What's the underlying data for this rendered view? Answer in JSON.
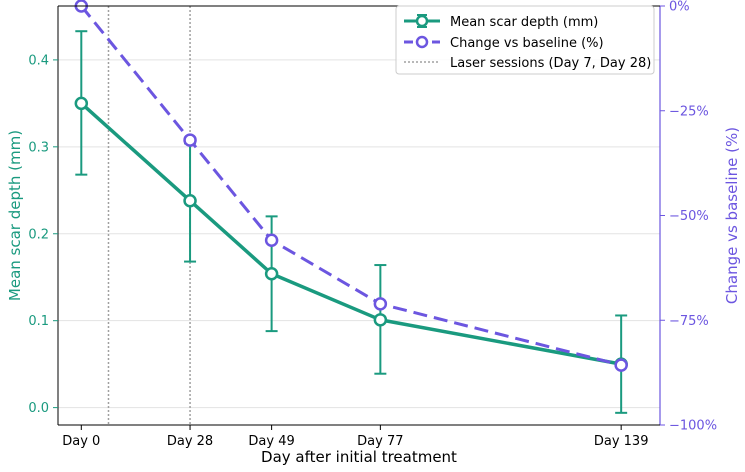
{
  "chart_data": {
    "type": "line",
    "x": [
      0,
      28,
      49,
      77,
      139
    ],
    "x_tick_labels": [
      "Day 0",
      "Day 28",
      "Day 49",
      "Day 77",
      "Day 139"
    ],
    "xlabel": "Day after initial treatment",
    "xlim": [
      -6,
      149
    ],
    "y_left": {
      "label": "Mean scar depth (mm)",
      "lim": [
        -0.02,
        0.462
      ],
      "ticks": [
        0.0,
        0.1,
        0.2,
        0.3,
        0.4
      ],
      "tick_labels": [
        "0.0",
        "0.1",
        "0.2",
        "0.3",
        "0.4"
      ]
    },
    "y_right": {
      "label": "Change vs baseline (%)",
      "lim": [
        -100,
        0
      ],
      "ticks": [
        0,
        -25,
        -50,
        -75,
        -100
      ],
      "tick_labels": [
        "0%",
        "−25%",
        "−50%",
        "−75%",
        "−100%"
      ]
    },
    "series": [
      {
        "name": "Mean scar depth (mm)",
        "axis": "left",
        "values": [
          0.35,
          0.238,
          0.154,
          0.101,
          0.05
        ],
        "error_lower": [
          0.268,
          0.168,
          0.088,
          0.039,
          -0.006
        ],
        "error_upper": [
          0.433,
          0.304,
          0.22,
          0.164,
          0.106
        ],
        "color": "#1a9a7f",
        "style": "solid"
      },
      {
        "name": "Change vs baseline (%)",
        "axis": "right",
        "values": [
          0,
          -32,
          -55.9,
          -71.1,
          -85.7
        ],
        "color": "#6c56e0",
        "style": "dashed"
      }
    ],
    "vlines": {
      "name": "Laser sessions (Day 7, Day 28)",
      "x": [
        7,
        28
      ],
      "color": "#a0a0a0"
    },
    "grid": "horizontal",
    "legend_position": "top-right"
  }
}
